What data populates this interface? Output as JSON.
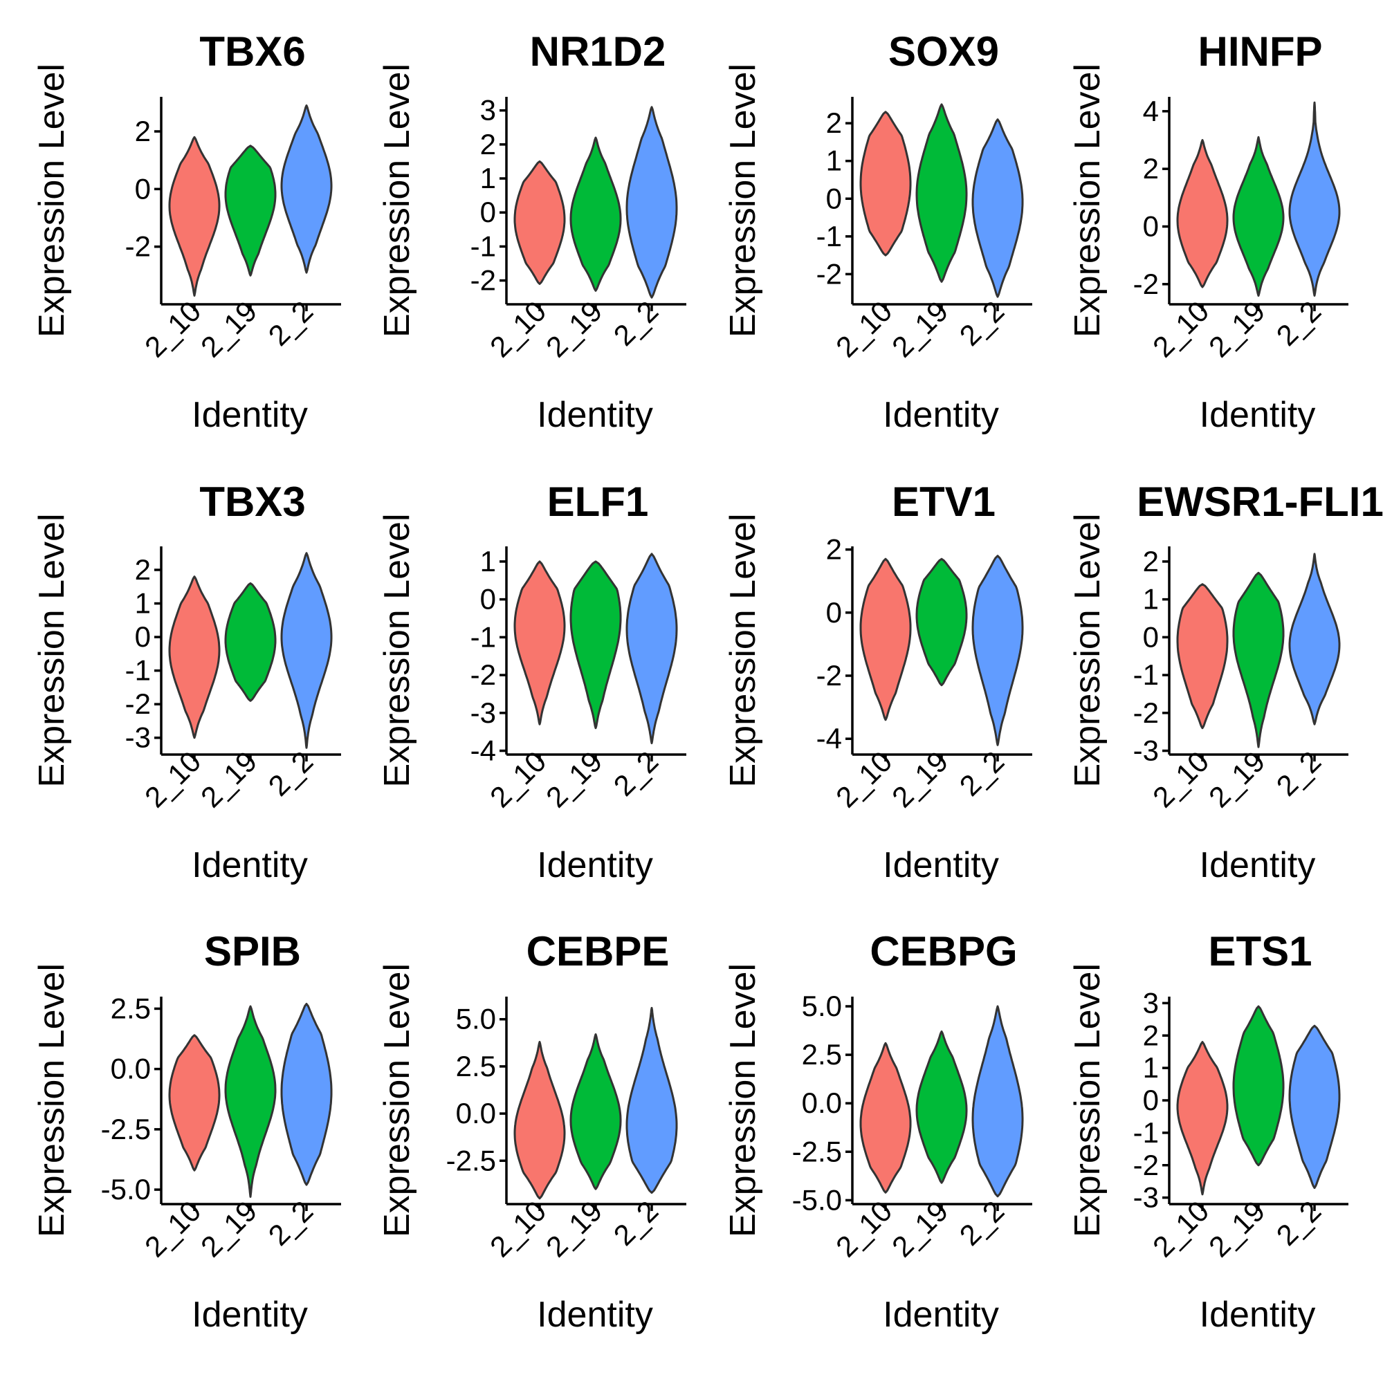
{
  "figure": {
    "x_axis_title": "Identity",
    "y_axis_title": "Expression Level"
  },
  "chart_data": [
    {
      "type": "violin",
      "title": "TBX6",
      "categories": [
        "2_10",
        "2_19",
        "2_2"
      ],
      "colors": [
        "#F8766D",
        "#00BA38",
        "#619CFF"
      ],
      "ylim": [
        -4,
        3.2
      ],
      "yticks": [
        "-2",
        "0",
        "2"
      ],
      "ytick_values": [
        -2,
        0,
        2
      ],
      "xlabel": "Identity",
      "ylabel": "Expression Level",
      "series": [
        {
          "name": "2_10",
          "min": -3.7,
          "max": 1.8,
          "q1": -1.3,
          "median": -0.7,
          "q3": 0.2
        },
        {
          "name": "2_19",
          "min": -3.0,
          "max": 1.5,
          "q1": -0.9,
          "median": -0.3,
          "q3": 0.6
        },
        {
          "name": "2_2",
          "min": -2.9,
          "max": 2.9,
          "q1": -0.8,
          "median": 0.0,
          "q3": 0.8
        }
      ]
    },
    {
      "type": "violin",
      "title": "NR1D2",
      "categories": [
        "2_10",
        "2_19",
        "2_2"
      ],
      "colors": [
        "#F8766D",
        "#00BA38",
        "#619CFF"
      ],
      "ylim": [
        -2.7,
        3.4
      ],
      "yticks": [
        "-2",
        "-1",
        "0",
        "1",
        "2",
        "3"
      ],
      "ytick_values": [
        -2,
        -1,
        0,
        1,
        2,
        3
      ],
      "xlabel": "Identity",
      "ylabel": "Expression Level",
      "series": [
        {
          "name": "2_10",
          "min": -2.1,
          "max": 1.5,
          "q1": -0.9,
          "median": -0.3,
          "q3": 0.4
        },
        {
          "name": "2_19",
          "min": -2.3,
          "max": 2.2,
          "q1": -0.8,
          "median": -0.3,
          "q3": 0.5
        },
        {
          "name": "2_2",
          "min": -2.5,
          "max": 3.1,
          "q1": -0.7,
          "median": 0.0,
          "q3": 1.0
        }
      ]
    },
    {
      "type": "violin",
      "title": "SOX9",
      "categories": [
        "2_10",
        "2_19",
        "2_2"
      ],
      "colors": [
        "#F8766D",
        "#00BA38",
        "#619CFF"
      ],
      "ylim": [
        -2.8,
        2.7
      ],
      "yticks": [
        "-2",
        "-1",
        "0",
        "1",
        "2"
      ],
      "ytick_values": [
        -2,
        -1,
        0,
        1,
        2
      ],
      "xlabel": "Identity",
      "ylabel": "Expression Level",
      "series": [
        {
          "name": "2_10",
          "min": -1.5,
          "max": 2.3,
          "q1": -0.4,
          "median": 0.3,
          "q3": 1.1
        },
        {
          "name": "2_19",
          "min": -2.2,
          "max": 2.5,
          "q1": -0.7,
          "median": 0.0,
          "q3": 0.8
        },
        {
          "name": "2_2",
          "min": -2.6,
          "max": 2.1,
          "q1": -0.9,
          "median": -0.2,
          "q3": 0.6
        }
      ]
    },
    {
      "type": "violin",
      "title": "HINFP",
      "categories": [
        "2_10",
        "2_19",
        "2_2"
      ],
      "colors": [
        "#F8766D",
        "#00BA38",
        "#619CFF"
      ],
      "ylim": [
        -2.7,
        4.5
      ],
      "yticks": [
        "-2",
        "0",
        "2",
        "4"
      ],
      "ytick_values": [
        -2,
        0,
        2,
        4
      ],
      "xlabel": "Identity",
      "ylabel": "Expression Level",
      "series": [
        {
          "name": "2_10",
          "min": -2.1,
          "max": 3.0,
          "q1": -0.6,
          "median": 0.1,
          "q3": 0.9
        },
        {
          "name": "2_19",
          "min": -2.4,
          "max": 3.1,
          "q1": -0.5,
          "median": 0.2,
          "q3": 0.9
        },
        {
          "name": "2_2",
          "min": -2.4,
          "max": 4.3,
          "q1": -0.2,
          "median": 0.4,
          "q3": 1.2
        }
      ]
    },
    {
      "type": "violin",
      "title": "TBX3",
      "categories": [
        "2_10",
        "2_19",
        "2_2"
      ],
      "colors": [
        "#F8766D",
        "#00BA38",
        "#619CFF"
      ],
      "ylim": [
        -3.5,
        2.7
      ],
      "yticks": [
        "-3",
        "-2",
        "-1",
        "0",
        "1",
        "2"
      ],
      "ytick_values": [
        -3,
        -2,
        -1,
        0,
        1,
        2
      ],
      "xlabel": "Identity",
      "ylabel": "Expression Level",
      "series": [
        {
          "name": "2_10",
          "min": -3.0,
          "max": 1.8,
          "q1": -1.2,
          "median": -0.5,
          "q3": 0.2
        },
        {
          "name": "2_19",
          "min": -1.9,
          "max": 1.6,
          "q1": -0.8,
          "median": -0.2,
          "q3": 0.5
        },
        {
          "name": "2_2",
          "min": -3.3,
          "max": 2.5,
          "q1": -0.9,
          "median": -0.1,
          "q3": 0.6
        }
      ]
    },
    {
      "type": "violin",
      "title": "ELF1",
      "categories": [
        "2_10",
        "2_19",
        "2_2"
      ],
      "colors": [
        "#F8766D",
        "#00BA38",
        "#619CFF"
      ],
      "ylim": [
        -4.1,
        1.4
      ],
      "yticks": [
        "-4",
        "-3",
        "-2",
        "-1",
        "0",
        "1"
      ],
      "ytick_values": [
        -4,
        -3,
        -2,
        -1,
        0,
        1
      ],
      "xlabel": "Identity",
      "ylabel": "Expression Level",
      "series": [
        {
          "name": "2_10",
          "min": -3.3,
          "max": 1.0,
          "q1": -1.5,
          "median": -0.8,
          "q3": -0.2
        },
        {
          "name": "2_19",
          "min": -3.4,
          "max": 1.0,
          "q1": -1.3,
          "median": -0.6,
          "q3": 0.2
        },
        {
          "name": "2_2",
          "min": -3.8,
          "max": 1.2,
          "q1": -1.6,
          "median": -0.9,
          "q3": -0.1
        }
      ]
    },
    {
      "type": "violin",
      "title": "ETV1",
      "categories": [
        "2_10",
        "2_19",
        "2_2"
      ],
      "colors": [
        "#F8766D",
        "#00BA38",
        "#619CFF"
      ],
      "ylim": [
        -4.5,
        2.1
      ],
      "yticks": [
        "-4",
        "-2",
        "0",
        "2"
      ],
      "ytick_values": [
        -4,
        -2,
        0,
        2
      ],
      "xlabel": "Identity",
      "ylabel": "Expression Level",
      "series": [
        {
          "name": "2_10",
          "min": -3.4,
          "max": 1.7,
          "q1": -1.4,
          "median": -0.6,
          "q3": 0.3
        },
        {
          "name": "2_19",
          "min": -2.3,
          "max": 1.7,
          "q1": -0.9,
          "median": -0.2,
          "q3": 0.6
        },
        {
          "name": "2_2",
          "min": -4.2,
          "max": 1.8,
          "q1": -1.6,
          "median": -0.6,
          "q3": 0.3
        }
      ]
    },
    {
      "type": "violin",
      "title": "EWSR1-FLI1",
      "categories": [
        "2_10",
        "2_19",
        "2_2"
      ],
      "colors": [
        "#F8766D",
        "#00BA38",
        "#619CFF"
      ],
      "ylim": [
        -3.1,
        2.4
      ],
      "yticks": [
        "-3",
        "-2",
        "-1",
        "0",
        "1",
        "2"
      ],
      "ytick_values": [
        -3,
        -2,
        -1,
        0,
        1,
        2
      ],
      "xlabel": "Identity",
      "ylabel": "Expression Level",
      "series": [
        {
          "name": "2_10",
          "min": -2.4,
          "max": 1.4,
          "q1": -0.9,
          "median": -0.2,
          "q3": 0.5
        },
        {
          "name": "2_19",
          "min": -2.9,
          "max": 1.7,
          "q1": -0.8,
          "median": 0.0,
          "q3": 0.6
        },
        {
          "name": "2_2",
          "min": -2.3,
          "max": 2.2,
          "q1": -0.8,
          "median": -0.3,
          "q3": 0.3
        }
      ]
    },
    {
      "type": "violin",
      "title": "SPIB",
      "categories": [
        "2_10",
        "2_19",
        "2_2"
      ],
      "colors": [
        "#F8766D",
        "#00BA38",
        "#619CFF"
      ],
      "ylim": [
        -5.6,
        3.0
      ],
      "yticks": [
        "-5.0",
        "-2.5",
        "0.0",
        "2.5"
      ],
      "ytick_values": [
        -5,
        -2.5,
        0,
        2.5
      ],
      "xlabel": "Identity",
      "ylabel": "Expression Level",
      "series": [
        {
          "name": "2_10",
          "min": -4.2,
          "max": 1.4,
          "q1": -2.2,
          "median": -1.2,
          "q3": -0.3
        },
        {
          "name": "2_19",
          "min": -5.3,
          "max": 2.6,
          "q1": -2.0,
          "median": -1.0,
          "q3": 0.0
        },
        {
          "name": "2_2",
          "min": -4.8,
          "max": 2.7,
          "q1": -2.5,
          "median": -1.1,
          "q3": 0.1
        }
      ]
    },
    {
      "type": "violin",
      "title": "CEBPE",
      "categories": [
        "2_10",
        "2_19",
        "2_2"
      ],
      "colors": [
        "#F8766D",
        "#00BA38",
        "#619CFF"
      ],
      "ylim": [
        -4.8,
        6.2
      ],
      "yticks": [
        "-2.5",
        "0.0",
        "2.5",
        "5.0"
      ],
      "ytick_values": [
        -2.5,
        0,
        2.5,
        5
      ],
      "xlabel": "Identity",
      "ylabel": "Expression Level",
      "series": [
        {
          "name": "2_10",
          "min": -4.5,
          "max": 3.8,
          "q1": -2.5,
          "median": -1.2,
          "q3": 0.0
        },
        {
          "name": "2_19",
          "min": -4.0,
          "max": 4.2,
          "q1": -1.8,
          "median": -0.5,
          "q3": 0.6
        },
        {
          "name": "2_2",
          "min": -4.2,
          "max": 5.6,
          "q1": -2.4,
          "median": -0.8,
          "q3": 0.6
        }
      ]
    },
    {
      "type": "violin",
      "title": "CEBPG",
      "categories": [
        "2_10",
        "2_19",
        "2_2"
      ],
      "colors": [
        "#F8766D",
        "#00BA38",
        "#619CFF"
      ],
      "ylim": [
        -5.2,
        5.5
      ],
      "yticks": [
        "-5.0",
        "-2.5",
        "0.0",
        "2.5",
        "5.0"
      ],
      "ytick_values": [
        -5,
        -2.5,
        0,
        2.5,
        5
      ],
      "xlabel": "Identity",
      "ylabel": "Expression Level",
      "series": [
        {
          "name": "2_10",
          "min": -4.6,
          "max": 3.1,
          "q1": -2.5,
          "median": -1.2,
          "q3": 0.0
        },
        {
          "name": "2_19",
          "min": -4.1,
          "max": 3.7,
          "q1": -1.8,
          "median": -0.5,
          "q3": 0.6
        },
        {
          "name": "2_2",
          "min": -4.8,
          "max": 5.0,
          "q1": -2.6,
          "median": -1.0,
          "q3": 0.6
        }
      ]
    },
    {
      "type": "violin",
      "title": "ETS1",
      "categories": [
        "2_10",
        "2_19",
        "2_2"
      ],
      "colors": [
        "#F8766D",
        "#00BA38",
        "#619CFF"
      ],
      "ylim": [
        -3.2,
        3.2
      ],
      "yticks": [
        "-3",
        "-2",
        "-1",
        "0",
        "1",
        "2",
        "3"
      ],
      "ytick_values": [
        -3,
        -2,
        -1,
        0,
        1,
        2,
        3
      ],
      "xlabel": "Identity",
      "ylabel": "Expression Level",
      "series": [
        {
          "name": "2_10",
          "min": -2.9,
          "max": 1.8,
          "q1": -0.9,
          "median": -0.3,
          "q3": 0.4
        },
        {
          "name": "2_19",
          "min": -2.0,
          "max": 2.9,
          "q1": -0.6,
          "median": 0.3,
          "q3": 1.2
        },
        {
          "name": "2_2",
          "min": -2.7,
          "max": 2.3,
          "q1": -0.9,
          "median": 0.0,
          "q3": 0.9
        }
      ]
    }
  ]
}
